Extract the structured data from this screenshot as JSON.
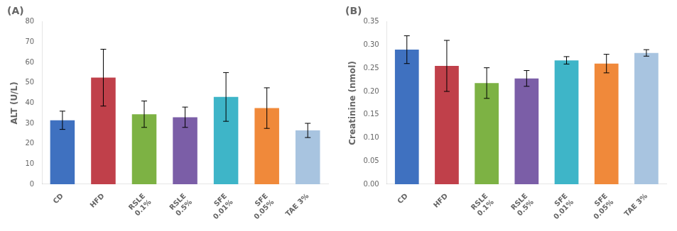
{
  "chart_data": [
    {
      "type": "bar",
      "title": "(A)",
      "ylabel": "ALT (U/L)",
      "categories": [
        "CD",
        "HFD",
        "RSLE\n0.1%",
        "RSLE\n0.5%",
        "SFE\n0.01%",
        "SFE\n0.05%",
        "TAE 3%"
      ],
      "values": [
        31.5,
        52.5,
        34.5,
        33.0,
        43.0,
        37.5,
        26.5
      ],
      "errors": [
        4.5,
        14.0,
        6.5,
        5.0,
        12.0,
        10.0,
        3.5
      ],
      "colors": [
        "#3F71C0",
        "#C0404A",
        "#7DB244",
        "#7B5EA7",
        "#3EB5C8",
        "#F0893A",
        "#A8C4E0"
      ],
      "ylim": [
        0,
        80
      ],
      "yticks": [
        0,
        10,
        20,
        30,
        40,
        50,
        60,
        70,
        80
      ],
      "grid": false
    },
    {
      "type": "bar",
      "title": "(B)",
      "ylabel": "Creatinine (nmol)",
      "categories": [
        "CD",
        "HFD",
        "RSLE\n0.1%",
        "RSLE\n0.5%",
        "SFE\n0.01%",
        "SFE\n0.05%",
        "TAE 3%"
      ],
      "values": [
        0.29,
        0.255,
        0.218,
        0.228,
        0.267,
        0.26,
        0.283
      ],
      "errors": [
        0.03,
        0.055,
        0.033,
        0.017,
        0.008,
        0.02,
        0.007
      ],
      "colors": [
        "#3F71C0",
        "#C0404A",
        "#7DB244",
        "#7B5EA7",
        "#3EB5C8",
        "#F0893A",
        "#A8C4E0"
      ],
      "ylim": [
        0,
        0.35
      ],
      "yticks": [
        {
          "value": 0,
          "label": "0.00"
        },
        0.05,
        {
          "value": 0.1,
          "label": "0.10"
        },
        0.15,
        {
          "value": 0.2,
          "label": "0.20"
        },
        0.25,
        {
          "value": 0.3,
          "label": "0.30"
        },
        0.35
      ],
      "grid": false
    }
  ]
}
